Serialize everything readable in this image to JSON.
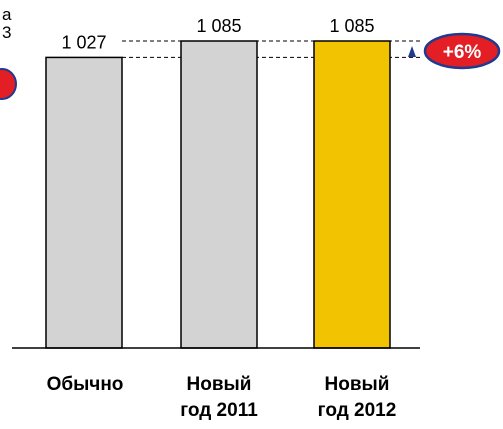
{
  "left_fragment": {
    "line1": "a",
    "line2": "3"
  },
  "colors": {
    "bar_default": "#d3d3d3",
    "bar_highlight": "#f2c300",
    "bar_stroke": "#000000",
    "badge_fill": "#e31e24",
    "badge_stroke": "#1f3a8f",
    "arrow": "#1f3a8f"
  },
  "chart_data": {
    "type": "bar",
    "categories": [
      {
        "line1": "Обычно",
        "line2": ""
      },
      {
        "line1": "Новый",
        "line2": "год 2011"
      },
      {
        "line1": "Новый",
        "line2": "год 2012"
      }
    ],
    "values": [
      1027,
      1085,
      1085
    ],
    "value_labels": [
      "1 027",
      "1 085",
      "1 085"
    ],
    "highlight_index": 2,
    "annotation": {
      "text": "+6%",
      "from": 1027,
      "to": 1085
    },
    "grid": false
  }
}
